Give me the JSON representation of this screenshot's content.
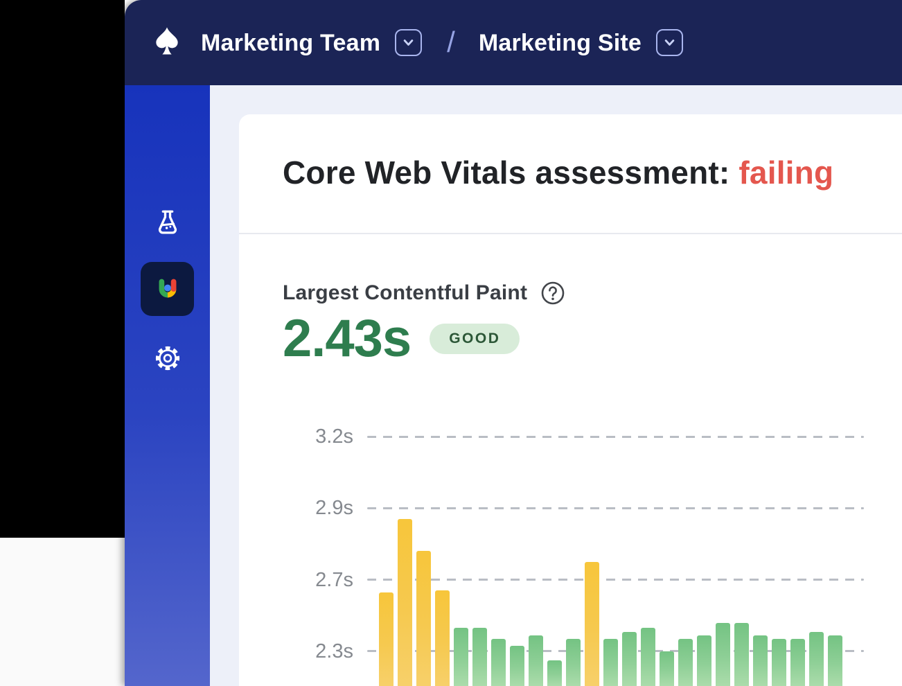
{
  "topbar": {
    "background": "#1b2456",
    "logo_icon": "spade-icon",
    "team_label": "Marketing Team",
    "separator": "/",
    "site_label": "Marketing Site"
  },
  "sidebar": {
    "background_top": "#1733bc",
    "background_bottom": "#5466cc",
    "items": [
      {
        "id": "experiments",
        "icon": "flask-icon",
        "active": false
      },
      {
        "id": "user-experience",
        "icon": "ux-logo-icon",
        "active": true
      },
      {
        "id": "settings",
        "icon": "gear-icon",
        "active": false
      }
    ]
  },
  "card": {
    "heading_prefix": "Core Web Vitals assessment: ",
    "heading_status": "failing",
    "heading_status_color": "#e4574e"
  },
  "metric": {
    "label": "Largest Contentful Paint",
    "help_icon": "question-circle-icon",
    "value": "2.43s",
    "value_color": "#2e7d4e",
    "badge_label": "GOOD",
    "badge_bg": "#d8ecd9",
    "badge_text_color": "#2c5737"
  },
  "chart_data": {
    "type": "bar",
    "title": "Largest Contentful Paint",
    "unit": "s",
    "grid": "horizontal dashed",
    "legend": "none",
    "yticks": [
      {
        "label": "3.2s",
        "value": 3.2
      },
      {
        "label": "2.9s",
        "value": 2.9
      },
      {
        "label": "2.7s",
        "value": 2.7
      },
      {
        "label": "2.3s",
        "value": 2.3
      }
    ],
    "bar_colors": {
      "yellow": "#f6c43f",
      "green": "#7cc88b"
    },
    "bars": [
      {
        "value": 2.63,
        "color": "yellow"
      },
      {
        "value": 2.87,
        "color": "yellow"
      },
      {
        "value": 2.78,
        "color": "yellow"
      },
      {
        "value": 2.64,
        "color": "yellow"
      },
      {
        "value": 2.43,
        "color": "green"
      },
      {
        "value": 2.43,
        "color": "green"
      },
      {
        "value": 2.37,
        "color": "green"
      },
      {
        "value": 2.33,
        "color": "green"
      },
      {
        "value": 2.39,
        "color": "green"
      },
      {
        "value": 2.25,
        "color": "green"
      },
      {
        "value": 2.37,
        "color": "green"
      },
      {
        "value": 2.75,
        "color": "yellow"
      },
      {
        "value": 2.37,
        "color": "green"
      },
      {
        "value": 2.41,
        "color": "green"
      },
      {
        "value": 2.43,
        "color": "green"
      },
      {
        "value": 2.3,
        "color": "green"
      },
      {
        "value": 2.37,
        "color": "green"
      },
      {
        "value": 2.39,
        "color": "green"
      },
      {
        "value": 2.46,
        "color": "green"
      },
      {
        "value": 2.46,
        "color": "green"
      },
      {
        "value": 2.39,
        "color": "green"
      },
      {
        "value": 2.37,
        "color": "green"
      },
      {
        "value": 2.37,
        "color": "green"
      },
      {
        "value": 2.41,
        "color": "green"
      },
      {
        "value": 2.39,
        "color": "green"
      }
    ]
  }
}
